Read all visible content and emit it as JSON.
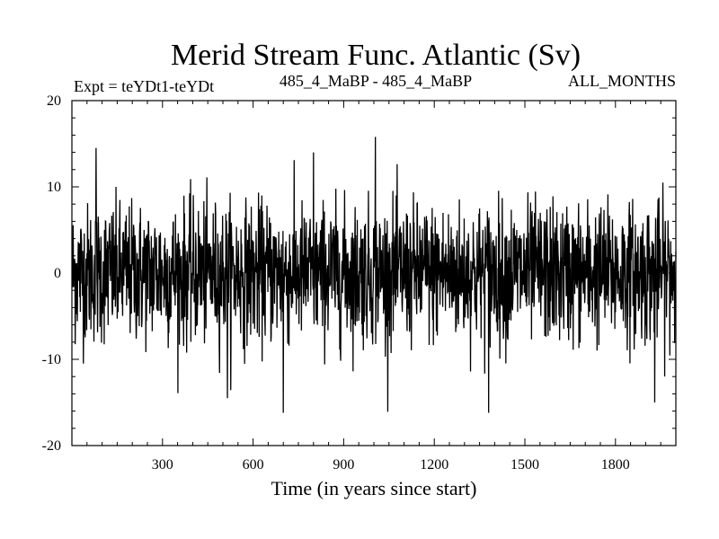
{
  "chart_data": {
    "type": "line",
    "title": "Merid Stream Func. Atlantic (Sv)",
    "subtitle_left": "Expt = teYDt1-teYDt",
    "subtitle_center": "485_4_MaBP - 485_4_MaBP",
    "subtitle_right": "ALL_MONTHS",
    "xlabel": "Time (in years since start)",
    "ylabel": "",
    "xlim": [
      0,
      2000
    ],
    "ylim": [
      -20,
      20
    ],
    "x_ticks": [
      300,
      600,
      900,
      1200,
      1500,
      1800
    ],
    "y_ticks": [
      20,
      10,
      0,
      -10,
      -20
    ],
    "x_tick_labels": [
      "300",
      "600",
      "900",
      "1200",
      "1500",
      "1800"
    ],
    "y_tick_labels": [
      "20",
      "10",
      "0",
      "-10",
      "-20"
    ],
    "series": [
      {
        "name": "Merid Stream Func. Atlantic",
        "x_start": 1,
        "x_step": 1,
        "n_points": 2000,
        "mean": 0,
        "std": 4,
        "min": -16.2,
        "max": 15.8,
        "notable_points": [
          {
            "x": 80,
            "y": 14.5
          },
          {
            "x": 515,
            "y": -14.5
          },
          {
            "x": 700,
            "y": -16.2
          },
          {
            "x": 800,
            "y": 14.0
          },
          {
            "x": 1005,
            "y": 15.8
          },
          {
            "x": 1380,
            "y": -16.2
          },
          {
            "x": 1930,
            "y": -15.0
          }
        ]
      }
    ]
  }
}
